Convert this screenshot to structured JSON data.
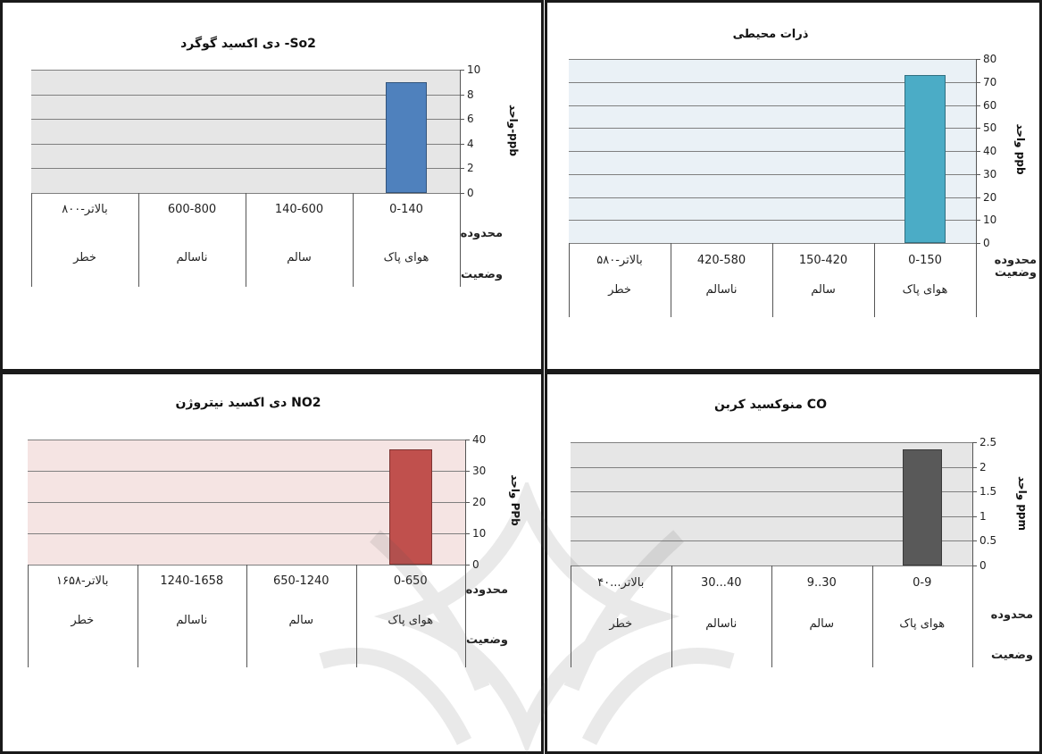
{
  "chart_data": [
    {
      "id": "so2",
      "type": "bar",
      "title": "دی اکسید گوگرد   -So2",
      "ylabel": "واحد-ppb",
      "ylim": [
        0,
        10
      ],
      "yticks": [
        0,
        2,
        4,
        6,
        8,
        10
      ],
      "categories": [
        "0-140",
        "140-600",
        "600-800",
        "۸۰۰-بالاتر"
      ],
      "status": [
        "هوای پاک",
        "سالم",
        "ناسالم",
        "خطر"
      ],
      "row_labels": [
        "محدوده",
        "وضعیت"
      ],
      "values": [
        9,
        null,
        null,
        null
      ],
      "bar_color": "#4f81bd",
      "plot_bg": "#e6e6e6"
    },
    {
      "id": "pm",
      "type": "bar",
      "title": "ذرات محیطی",
      "ylabel": "واحد ppb",
      "ylim": [
        0,
        80
      ],
      "yticks": [
        0,
        10,
        20,
        30,
        40,
        50,
        60,
        70,
        80
      ],
      "categories": [
        "0-150",
        "150-420",
        "420-580",
        "۵۸۰-بالاتر"
      ],
      "status": [
        "هوای پاک",
        "سالم",
        "ناسالم",
        "خطر"
      ],
      "row_labels": [
        "محدوده\nوضعیت"
      ],
      "values": [
        73,
        null,
        null,
        null
      ],
      "bar_color": "#4bacc6",
      "plot_bg": "#eaf1f6"
    },
    {
      "id": "no2",
      "type": "bar",
      "title": "دی اکسید نیتروژن NO2",
      "ylabel": "واحد PPb",
      "ylim": [
        0,
        40
      ],
      "yticks": [
        0,
        10,
        20,
        30,
        40
      ],
      "categories": [
        "0-650",
        "650-1240",
        "1240-1658",
        "۱۶۵۸-بالاتر"
      ],
      "status": [
        "هوای پاک",
        "سالم",
        "ناسالم",
        "خطر"
      ],
      "row_labels": [
        "محدوده",
        "وضعیت"
      ],
      "values": [
        37,
        null,
        null,
        null
      ],
      "bar_color": "#c0504d",
      "plot_bg": "#f5e4e3"
    },
    {
      "id": "co",
      "type": "bar",
      "title": "منوکسید کربن CO",
      "ylabel": "واحد ppm",
      "ylim": [
        0,
        2.5
      ],
      "yticks": [
        0,
        0.5,
        1,
        1.5,
        2,
        2.5
      ],
      "categories": [
        "0-9",
        "9..30",
        "30...40",
        "۴۰...بالاتر"
      ],
      "status": [
        "هوای پاک",
        "سالم",
        "ناسالم",
        "خطر"
      ],
      "row_labels": [
        "محدوده",
        "وضعیت"
      ],
      "values": [
        2.35,
        null,
        null,
        null
      ],
      "bar_color": "#595959",
      "plot_bg": "#e6e6e6"
    }
  ]
}
